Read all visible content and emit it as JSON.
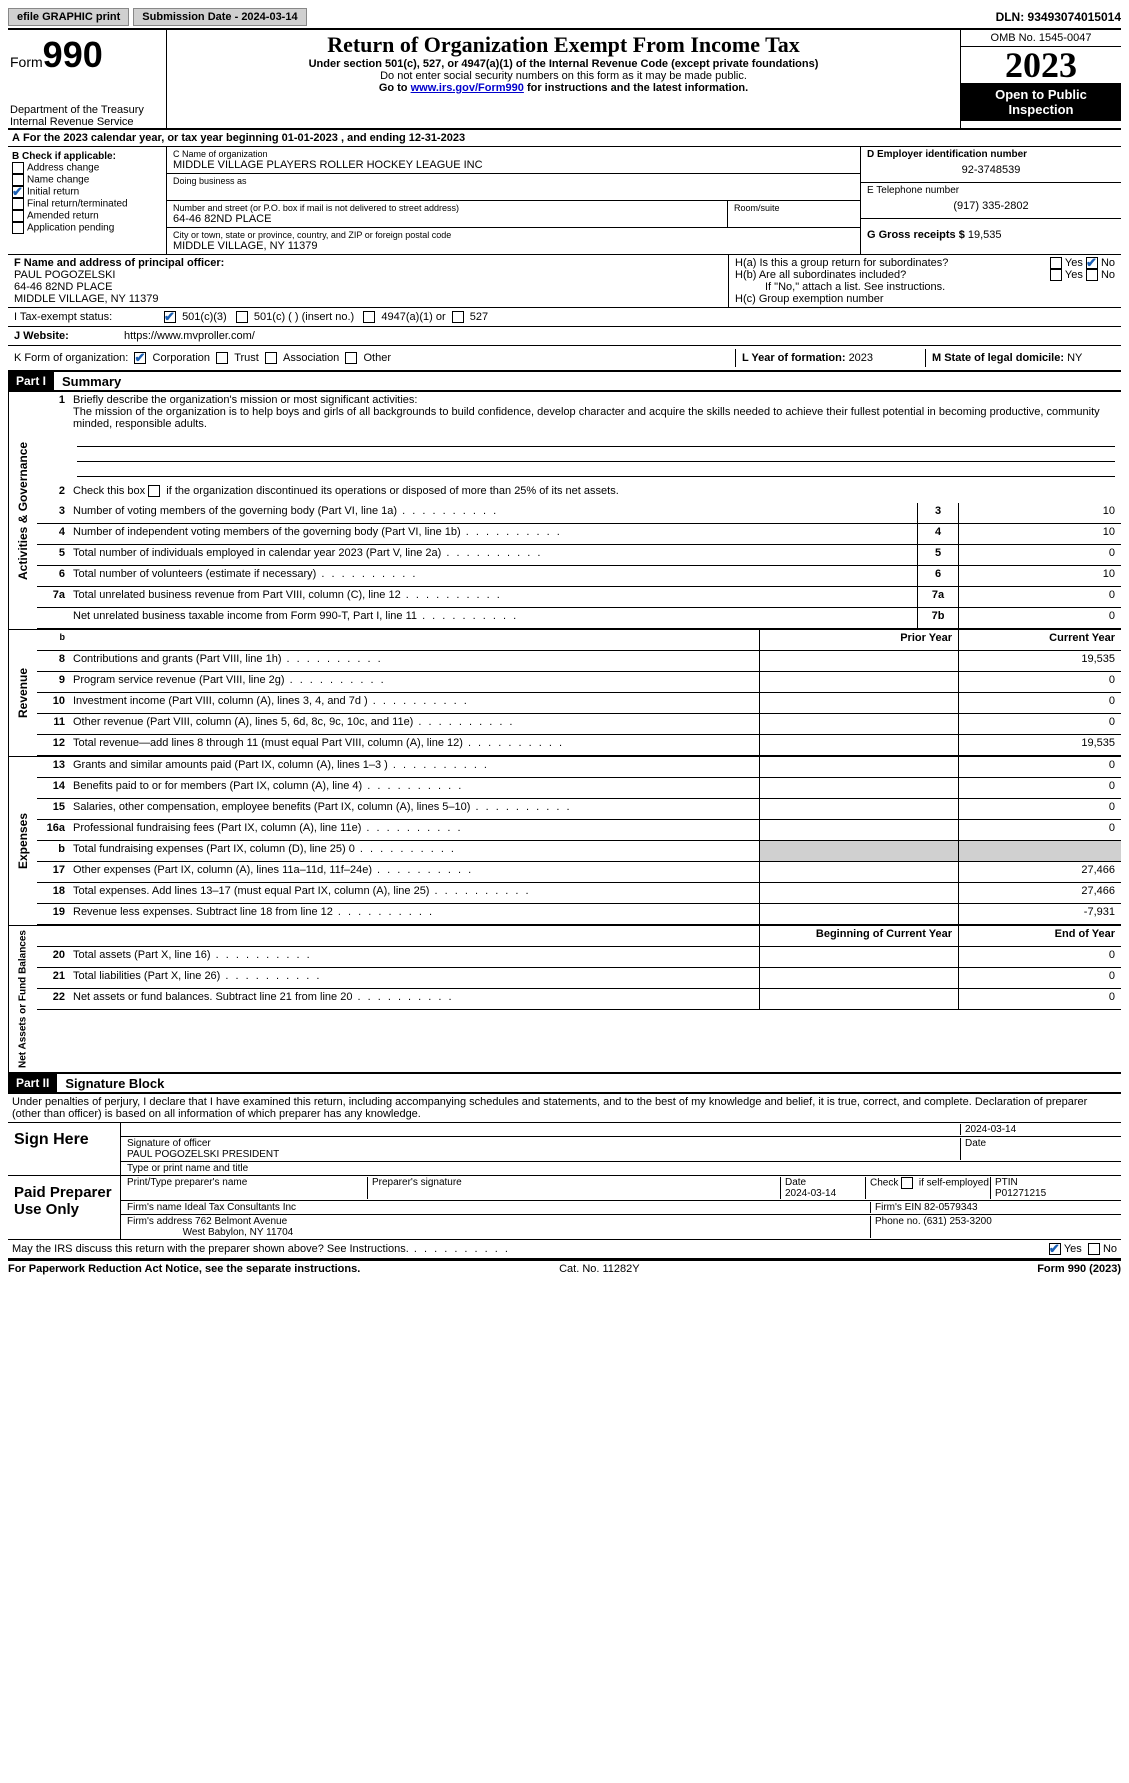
{
  "topbar": {
    "efile": "efile GRAPHIC print",
    "submission": "Submission Date - 2024-03-14",
    "dln": "DLN: 93493074015014"
  },
  "header": {
    "form_word": "Form",
    "form_num": "990",
    "title": "Return of Organization Exempt From Income Tax",
    "sub1": "Under section 501(c), 527, or 4947(a)(1) of the Internal Revenue Code (except private foundations)",
    "sub2": "Do not enter social security numbers on this form as it may be made public.",
    "sub3_pre": "Go to ",
    "sub3_link": "www.irs.gov/Form990",
    "sub3_post": " for instructions and the latest information.",
    "dept": "Department of the Treasury",
    "irs": "Internal Revenue Service",
    "omb": "OMB No. 1545-0047",
    "year": "2023",
    "inspect": "Open to Public Inspection"
  },
  "rowA": {
    "label": "A",
    "text_pre": "For the 2023 calendar year, or tax year beginning ",
    "begin": "01-01-2023",
    "mid": " , and ending ",
    "end": "12-31-2023"
  },
  "B": {
    "label": "B Check if applicable:",
    "opts": [
      "Address change",
      "Name change",
      "Initial return",
      "Final return/terminated",
      "Amended return",
      "Application pending"
    ],
    "checked_idx": 2
  },
  "C": {
    "name_label": "C Name of organization",
    "name": "MIDDLE VILLAGE PLAYERS ROLLER HOCKEY LEAGUE INC",
    "dba_label": "Doing business as",
    "street_label": "Number and street (or P.O. box if mail is not delivered to street address)",
    "room_label": "Room/suite",
    "street": "64-46 82ND PLACE",
    "city_label": "City or town, state or province, country, and ZIP or foreign postal code",
    "city": "MIDDLE VILLAGE, NY  11379"
  },
  "D": {
    "label": "D Employer identification number",
    "val": "92-3748539"
  },
  "E": {
    "label": "E Telephone number",
    "val": "(917) 335-2802"
  },
  "G": {
    "label": "G Gross receipts $ ",
    "val": "19,535"
  },
  "F": {
    "label": "F  Name and address of principal officer:",
    "name": "PAUL POGOZELSKI",
    "street": "64-46 82ND PLACE",
    "city": "MIDDLE VILLAGE, NY  11379"
  },
  "H": {
    "a": "H(a)  Is this a group return for subordinates?",
    "b": "H(b)  Are all subordinates included?",
    "b_note": "If \"No,\" attach a list. See instructions.",
    "c": "H(c)  Group exemption number ",
    "yes": "Yes",
    "no": "No"
  },
  "I": {
    "label": "I   Tax-exempt status:",
    "o1": "501(c)(3)",
    "o2": "501(c) (  ) (insert no.)",
    "o3": "4947(a)(1) or",
    "o4": "527"
  },
  "J": {
    "label": "J   Website:",
    "val": "https://www.mvproller.com/"
  },
  "K": {
    "label": "K Form of organization:",
    "o1": "Corporation",
    "o2": "Trust",
    "o3": "Association",
    "o4": "Other"
  },
  "L": {
    "label": "L Year of formation: ",
    "val": "2023"
  },
  "M": {
    "label": "M State of legal domicile: ",
    "val": "NY"
  },
  "part1": {
    "num": "Part I",
    "title": "Summary"
  },
  "summary": {
    "l1_label": "Briefly describe the organization's mission or most significant activities:",
    "l1_text": "The mission of the organization is to help boys and girls of all backgrounds to build confidence, develop character and acquire the skills needed to achieve their fullest potential in becoming productive, community minded, responsible adults.",
    "l2": "Check this box      if the organization discontinued its operations or disposed of more than 25% of its net assets.",
    "rows_ag": [
      {
        "n": "3",
        "d": "Number of voting members of the governing body (Part VI, line 1a)",
        "box": "3",
        "v": "10"
      },
      {
        "n": "4",
        "d": "Number of independent voting members of the governing body (Part VI, line 1b)",
        "box": "4",
        "v": "10"
      },
      {
        "n": "5",
        "d": "Total number of individuals employed in calendar year 2023 (Part V, line 2a)",
        "box": "5",
        "v": "0"
      },
      {
        "n": "6",
        "d": "Total number of volunteers (estimate if necessary)",
        "box": "6",
        "v": "10"
      },
      {
        "n": "7a",
        "d": "Total unrelated business revenue from Part VIII, column (C), line 12",
        "box": "7a",
        "v": "0"
      },
      {
        "n": "",
        "d": "Net unrelated business taxable income from Form 990-T, Part I, line 11",
        "box": "7b",
        "v": "0"
      }
    ],
    "hdr_prior": "Prior Year",
    "hdr_curr": "Current Year",
    "rows_rev": [
      {
        "n": "8",
        "d": "Contributions and grants (Part VIII, line 1h)",
        "p": "",
        "c": "19,535"
      },
      {
        "n": "9",
        "d": "Program service revenue (Part VIII, line 2g)",
        "p": "",
        "c": "0"
      },
      {
        "n": "10",
        "d": "Investment income (Part VIII, column (A), lines 3, 4, and 7d )",
        "p": "",
        "c": "0"
      },
      {
        "n": "11",
        "d": "Other revenue (Part VIII, column (A), lines 5, 6d, 8c, 9c, 10c, and 11e)",
        "p": "",
        "c": "0"
      },
      {
        "n": "12",
        "d": "Total revenue—add lines 8 through 11 (must equal Part VIII, column (A), line 12)",
        "p": "",
        "c": "19,535"
      }
    ],
    "rows_exp": [
      {
        "n": "13",
        "d": "Grants and similar amounts paid (Part IX, column (A), lines 1–3 )",
        "p": "",
        "c": "0"
      },
      {
        "n": "14",
        "d": "Benefits paid to or for members (Part IX, column (A), line 4)",
        "p": "",
        "c": "0"
      },
      {
        "n": "15",
        "d": "Salaries, other compensation, employee benefits (Part IX, column (A), lines 5–10)",
        "p": "",
        "c": "0"
      },
      {
        "n": "16a",
        "d": "Professional fundraising fees (Part IX, column (A), line 11e)",
        "p": "",
        "c": "0"
      },
      {
        "n": "b",
        "d": "Total fundraising expenses (Part IX, column (D), line 25) 0",
        "p": "shade",
        "c": "shade"
      },
      {
        "n": "17",
        "d": "Other expenses (Part IX, column (A), lines 11a–11d, 11f–24e)",
        "p": "",
        "c": "27,466"
      },
      {
        "n": "18",
        "d": "Total expenses. Add lines 13–17 (must equal Part IX, column (A), line 25)",
        "p": "",
        "c": "27,466"
      },
      {
        "n": "19",
        "d": "Revenue less expenses. Subtract line 18 from line 12",
        "p": "",
        "c": "-7,931"
      }
    ],
    "hdr_beg": "Beginning of Current Year",
    "hdr_end": "End of Year",
    "rows_na": [
      {
        "n": "20",
        "d": "Total assets (Part X, line 16)",
        "p": "",
        "c": "0"
      },
      {
        "n": "21",
        "d": "Total liabilities (Part X, line 26)",
        "p": "",
        "c": "0"
      },
      {
        "n": "22",
        "d": "Net assets or fund balances. Subtract line 21 from line 20",
        "p": "",
        "c": "0"
      }
    ],
    "vtab_ag": "Activities & Governance",
    "vtab_rev": "Revenue",
    "vtab_exp": "Expenses",
    "vtab_na": "Net Assets or Fund Balances"
  },
  "part2": {
    "num": "Part II",
    "title": "Signature Block"
  },
  "sig": {
    "penalty": "Under penalties of perjury, I declare that I have examined this return, including accompanying schedules and statements, and to the best of my knowledge and belief, it is true, correct, and complete. Declaration of preparer (other than officer) is based on all information of which preparer has any knowledge.",
    "sign_here": "Sign Here",
    "sig_officer_label": "Signature of officer",
    "sig_date": "2024-03-14",
    "date_label": "Date",
    "officer": "PAUL POGOZELSKI PRESIDENT",
    "type_label": "Type or print name and title",
    "paid": "Paid Preparer Use Only",
    "prep_name_label": "Print/Type preparer's name",
    "prep_sig_label": "Preparer's signature",
    "prep_date_label": "Date",
    "prep_date": "2024-03-14",
    "check_self": "Check        if self-employed",
    "ptin_label": "PTIN",
    "ptin": "P01271215",
    "firm_name_label": "Firm's name   ",
    "firm_name": "Ideal Tax Consultants Inc",
    "firm_ein_label": "Firm's EIN  ",
    "firm_ein": "82-0579343",
    "firm_addr_label": "Firm's address ",
    "firm_addr1": "762 Belmont Avenue",
    "firm_addr2": "West Babylon, NY  11704",
    "phone_label": "Phone no. ",
    "phone": "(631) 253-3200",
    "may_irs": "May the IRS discuss this return with the preparer shown above? See Instructions.",
    "yes": "Yes",
    "no": "No"
  },
  "footer": {
    "left": "For Paperwork Reduction Act Notice, see the separate instructions.",
    "mid": "Cat. No. 11282Y",
    "right": "Form 990 (2023)"
  }
}
